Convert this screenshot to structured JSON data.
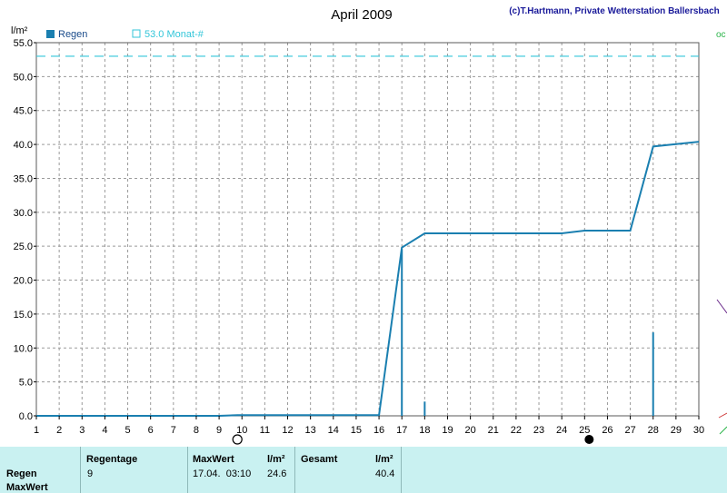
{
  "header": {
    "title": "April 2009",
    "credit": "(c)T.Hartmann, Private Wetterstation Ballersbach"
  },
  "legend": {
    "unit": "l/m²",
    "series_label": "Regen",
    "reference_label": "53.0 Monat-#"
  },
  "colors": {
    "series": "#1a7fb0",
    "reference": "#33c6d9",
    "grid": "#9a9a9a",
    "panel": "#c9f1f1"
  },
  "moon_phases": [
    {
      "day": 9.8,
      "icon": "full-moon-icon"
    },
    {
      "day": 25.2,
      "icon": "new-moon-icon"
    }
  ],
  "chart_data": {
    "type": "line",
    "title": "April 2009",
    "ylabel": "l/m²",
    "xlabel": "",
    "xlim": [
      1,
      30
    ],
    "ylim": [
      0,
      55
    ],
    "grid": true,
    "legend_position": "top-left",
    "x_ticks": [
      "1",
      "2",
      "3",
      "4",
      "5",
      "6",
      "7",
      "8",
      "9",
      "10",
      "11",
      "12",
      "13",
      "14",
      "15",
      "16",
      "17",
      "18",
      "19",
      "20",
      "21",
      "22",
      "23",
      "24",
      "25",
      "26",
      "27",
      "28",
      "29",
      "30"
    ],
    "y_ticks": [
      "0.0",
      "5.0",
      "10.0",
      "15.0",
      "20.0",
      "25.0",
      "30.0",
      "35.0",
      "40.0",
      "45.0",
      "50.0",
      "55.0"
    ],
    "series": [
      {
        "name": "Regen",
        "kind": "cumulative-line",
        "x": [
          1,
          9,
          9.8,
          16,
          17,
          18,
          24,
          25,
          27,
          28,
          30
        ],
        "y": [
          0.0,
          0.0,
          0.1,
          0.1,
          24.8,
          26.9,
          26.9,
          27.3,
          27.3,
          39.7,
          40.4
        ]
      },
      {
        "name": "Regen",
        "kind": "daily-bars",
        "x": [
          9.8,
          17,
          18,
          28
        ],
        "y": [
          0.1,
          24.6,
          2.1,
          12.3
        ]
      }
    ],
    "reference_lines": [
      {
        "name": "53.0 Monat-#",
        "y": 53.0,
        "style": "dashed"
      }
    ]
  },
  "summary": {
    "row_labels": [
      "Regen",
      "MaxWert"
    ],
    "regentage_label": "Regentage",
    "regentage_value": "9",
    "maxwert_label": "MaxWert",
    "maxwert_unit": "l/m²",
    "maxwert_time": "17.04.  03:10",
    "maxwert_value": "24.6",
    "gesamt_label": "Gesamt",
    "gesamt_unit": "l/m²",
    "gesamt_value": "40.4"
  }
}
